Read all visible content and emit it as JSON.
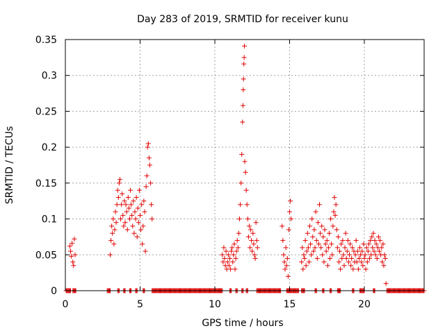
{
  "chart_data": {
    "type": "scatter",
    "title": "Day 283 of 2019, SRMTID for receiver kunu",
    "xlabel": "GPS time / hours",
    "ylabel": "SRMTID / TECUs",
    "xlim": [
      0,
      24
    ],
    "ylim": [
      0,
      0.35
    ],
    "xticks": [
      0,
      5,
      10,
      15,
      20
    ],
    "xtick_labels": [
      "0",
      "5",
      "10",
      "15",
      "20"
    ],
    "yticks": [
      0,
      0.05,
      0.1,
      0.15,
      0.2,
      0.25,
      0.3,
      0.35
    ],
    "ytick_labels": [
      "0",
      "0.05",
      "0.1",
      "0.15",
      "0.2",
      "0.25",
      "0.3",
      "0.35"
    ],
    "grid": true,
    "marker": "plus",
    "color": "#e00000",
    "series": [
      {
        "name": "SRMTID",
        "points": [
          [
            0.3,
            0.062
          ],
          [
            0.35,
            0.055
          ],
          [
            0.4,
            0.048
          ],
          [
            0.45,
            0.066
          ],
          [
            0.5,
            0.04
          ],
          [
            0.55,
            0.035
          ],
          [
            0.6,
            0.072
          ],
          [
            0.65,
            0.05
          ],
          [
            3.0,
            0.05
          ],
          [
            3.05,
            0.07
          ],
          [
            3.1,
            0.09
          ],
          [
            3.15,
            0.08
          ],
          [
            3.2,
            0.1
          ],
          [
            3.25,
            0.065
          ],
          [
            3.3,
            0.085
          ],
          [
            3.35,
            0.11
          ],
          [
            3.4,
            0.095
          ],
          [
            3.45,
            0.12
          ],
          [
            3.5,
            0.14
          ],
          [
            3.55,
            0.13
          ],
          [
            3.6,
            0.15
          ],
          [
            3.65,
            0.155
          ],
          [
            3.7,
            0.1
          ],
          [
            3.75,
            0.12
          ],
          [
            3.8,
            0.135
          ],
          [
            3.85,
            0.105
          ],
          [
            3.9,
            0.09
          ],
          [
            3.95,
            0.125
          ],
          [
            4.0,
            0.095
          ],
          [
            4.05,
            0.12
          ],
          [
            4.1,
            0.11
          ],
          [
            4.15,
            0.085
          ],
          [
            4.2,
            0.13
          ],
          [
            4.25,
            0.115
          ],
          [
            4.3,
            0.1
          ],
          [
            4.35,
            0.14
          ],
          [
            4.4,
            0.12
          ],
          [
            4.45,
            0.105
          ],
          [
            4.5,
            0.09
          ],
          [
            4.55,
            0.125
          ],
          [
            4.6,
            0.08
          ],
          [
            4.65,
            0.11
          ],
          [
            4.7,
            0.1
          ],
          [
            4.75,
            0.13
          ],
          [
            4.8,
            0.075
          ],
          [
            4.85,
            0.115
          ],
          [
            4.9,
            0.095
          ],
          [
            4.95,
            0.14
          ],
          [
            5.0,
            0.105
          ],
          [
            5.05,
            0.085
          ],
          [
            5.1,
            0.12
          ],
          [
            5.15,
            0.065
          ],
          [
            5.2,
            0.09
          ],
          [
            5.25,
            0.125
          ],
          [
            5.3,
            0.11
          ],
          [
            5.35,
            0.055
          ],
          [
            5.4,
            0.145
          ],
          [
            5.45,
            0.16
          ],
          [
            5.5,
            0.2
          ],
          [
            5.55,
            0.205
          ],
          [
            5.6,
            0.185
          ],
          [
            5.65,
            0.175
          ],
          [
            5.7,
            0.15
          ],
          [
            5.75,
            0.12
          ],
          [
            5.8,
            0.1
          ],
          [
            10.5,
            0.05
          ],
          [
            10.55,
            0.04
          ],
          [
            10.6,
            0.06
          ],
          [
            10.65,
            0.045
          ],
          [
            10.7,
            0.035
          ],
          [
            10.75,
            0.055
          ],
          [
            10.8,
            0.03
          ],
          [
            10.85,
            0.04
          ],
          [
            10.9,
            0.05
          ],
          [
            10.95,
            0.035
          ],
          [
            11.0,
            0.045
          ],
          [
            11.05,
            0.03
          ],
          [
            11.1,
            0.055
          ],
          [
            11.15,
            0.06
          ],
          [
            11.2,
            0.04
          ],
          [
            11.25,
            0.05
          ],
          [
            11.3,
            0.065
          ],
          [
            11.35,
            0.03
          ],
          [
            11.4,
            0.045
          ],
          [
            11.45,
            0.055
          ],
          [
            11.5,
            0.07
          ],
          [
            11.55,
            0.06
          ],
          [
            11.6,
            0.08
          ],
          [
            11.65,
            0.1
          ],
          [
            11.7,
            0.12
          ],
          [
            11.75,
            0.15
          ],
          [
            11.8,
            0.19
          ],
          [
            11.85,
            0.235
          ],
          [
            11.88,
            0.258
          ],
          [
            11.9,
            0.28
          ],
          [
            11.92,
            0.295
          ],
          [
            11.94,
            0.316
          ],
          [
            11.96,
            0.325
          ],
          [
            11.98,
            0.341
          ],
          [
            12.0,
            0.18
          ],
          [
            12.05,
            0.165
          ],
          [
            12.1,
            0.14
          ],
          [
            12.15,
            0.12
          ],
          [
            12.2,
            0.1
          ],
          [
            12.25,
            0.075
          ],
          [
            12.3,
            0.09
          ],
          [
            12.35,
            0.06
          ],
          [
            12.4,
            0.085
          ],
          [
            12.45,
            0.07
          ],
          [
            12.5,
            0.055
          ],
          [
            12.55,
            0.08
          ],
          [
            12.6,
            0.065
          ],
          [
            12.65,
            0.05
          ],
          [
            12.7,
            0.045
          ],
          [
            12.75,
            0.095
          ],
          [
            12.8,
            0.07
          ],
          [
            12.85,
            0.06
          ],
          [
            14.5,
            0.09
          ],
          [
            14.55,
            0.07
          ],
          [
            14.6,
            0.05
          ],
          [
            14.65,
            0.04
          ],
          [
            14.7,
            0.03
          ],
          [
            14.75,
            0.06
          ],
          [
            14.8,
            0.035
          ],
          [
            14.85,
            0.045
          ],
          [
            14.9,
            0.02
          ],
          [
            14.95,
            0.085
          ],
          [
            15.0,
            0.11
          ],
          [
            15.05,
            0.125
          ],
          [
            15.1,
            0.1
          ],
          [
            15.8,
            0.04
          ],
          [
            15.85,
            0.06
          ],
          [
            15.9,
            0.03
          ],
          [
            15.95,
            0.05
          ],
          [
            16.0,
            0.045
          ],
          [
            16.05,
            0.07
          ],
          [
            16.1,
            0.035
          ],
          [
            16.15,
            0.055
          ],
          [
            16.2,
            0.08
          ],
          [
            16.25,
            0.06
          ],
          [
            16.3,
            0.04
          ],
          [
            16.35,
            0.09
          ],
          [
            16.4,
            0.065
          ],
          [
            16.45,
            0.05
          ],
          [
            16.5,
            0.1
          ],
          [
            16.55,
            0.075
          ],
          [
            16.6,
            0.055
          ],
          [
            16.65,
            0.085
          ],
          [
            16.7,
            0.06
          ],
          [
            16.75,
            0.11
          ],
          [
            16.8,
            0.07
          ],
          [
            16.85,
            0.045
          ],
          [
            16.9,
            0.095
          ],
          [
            16.95,
            0.065
          ],
          [
            17.0,
            0.12
          ],
          [
            17.05,
            0.08
          ],
          [
            17.1,
            0.06
          ],
          [
            17.15,
            0.09
          ],
          [
            17.2,
            0.05
          ],
          [
            17.25,
            0.075
          ],
          [
            17.3,
            0.04
          ],
          [
            17.35,
            0.085
          ],
          [
            17.4,
            0.065
          ],
          [
            17.45,
            0.055
          ],
          [
            17.5,
            0.07
          ],
          [
            17.55,
            0.035
          ],
          [
            17.6,
            0.06
          ],
          [
            17.65,
            0.08
          ],
          [
            17.7,
            0.045
          ],
          [
            17.75,
            0.1
          ],
          [
            17.8,
            0.065
          ],
          [
            17.85,
            0.05
          ],
          [
            17.9,
            0.09
          ],
          [
            17.95,
            0.11
          ],
          [
            18.0,
            0.13
          ],
          [
            18.05,
            0.105
          ],
          [
            18.1,
            0.12
          ],
          [
            18.15,
            0.085
          ],
          [
            18.2,
            0.06
          ],
          [
            18.25,
            0.075
          ],
          [
            18.3,
            0.04
          ],
          [
            18.35,
            0.055
          ],
          [
            18.4,
            0.03
          ],
          [
            18.45,
            0.065
          ],
          [
            18.5,
            0.045
          ],
          [
            18.55,
            0.07
          ],
          [
            18.6,
            0.05
          ],
          [
            18.65,
            0.035
          ],
          [
            18.7,
            0.06
          ],
          [
            18.75,
            0.08
          ],
          [
            18.8,
            0.045
          ],
          [
            18.85,
            0.055
          ],
          [
            18.9,
            0.07
          ],
          [
            18.95,
            0.04
          ],
          [
            19.0,
            0.05
          ],
          [
            19.05,
            0.065
          ],
          [
            19.1,
            0.035
          ],
          [
            19.15,
            0.045
          ],
          [
            19.2,
            0.06
          ],
          [
            19.25,
            0.03
          ],
          [
            19.3,
            0.055
          ],
          [
            19.35,
            0.04
          ],
          [
            19.4,
            0.05
          ],
          [
            19.45,
            0.07
          ],
          [
            19.5,
            0.04
          ],
          [
            19.55,
            0.055
          ],
          [
            19.6,
            0.03
          ],
          [
            19.65,
            0.045
          ],
          [
            19.7,
            0.06
          ],
          [
            19.75,
            0.05
          ],
          [
            19.8,
            0.04
          ],
          [
            19.85,
            0.055
          ],
          [
            19.9,
            0.035
          ],
          [
            19.95,
            0.065
          ],
          [
            20.0,
            0.045
          ],
          [
            20.05,
            0.05
          ],
          [
            20.1,
            0.03
          ],
          [
            20.15,
            0.06
          ],
          [
            20.2,
            0.04
          ],
          [
            20.25,
            0.055
          ],
          [
            20.3,
            0.065
          ],
          [
            20.35,
            0.045
          ],
          [
            20.4,
            0.07
          ],
          [
            20.45,
            0.05
          ],
          [
            20.5,
            0.075
          ],
          [
            20.55,
            0.06
          ],
          [
            20.6,
            0.08
          ],
          [
            20.65,
            0.055
          ],
          [
            20.7,
            0.07
          ],
          [
            20.75,
            0.05
          ],
          [
            20.8,
            0.065
          ],
          [
            20.85,
            0.045
          ],
          [
            20.9,
            0.06
          ],
          [
            20.95,
            0.075
          ],
          [
            21.0,
            0.055
          ],
          [
            21.05,
            0.07
          ],
          [
            21.1,
            0.05
          ],
          [
            21.15,
            0.06
          ],
          [
            21.2,
            0.04
          ],
          [
            21.25,
            0.065
          ],
          [
            21.3,
            0.035
          ],
          [
            21.35,
            0.05
          ],
          [
            21.4,
            0.045
          ],
          [
            21.45,
            0.01
          ]
        ],
        "zero_ranges": [
          [
            0.05,
            0.35
          ],
          [
            0.5,
            0.7
          ],
          [
            2.8,
            3.0
          ],
          [
            3.5,
            3.6
          ],
          [
            3.9,
            4.0
          ],
          [
            4.3,
            4.4
          ],
          [
            4.7,
            4.8
          ],
          [
            5.2,
            5.3
          ],
          [
            5.8,
            10.5
          ],
          [
            11.0,
            11.1
          ],
          [
            11.4,
            11.5
          ],
          [
            11.8,
            11.9
          ],
          [
            12.1,
            12.2
          ],
          [
            12.8,
            14.4
          ],
          [
            14.8,
            15.6
          ],
          [
            15.8,
            16.0
          ],
          [
            16.7,
            16.8
          ],
          [
            17.2,
            17.3
          ],
          [
            17.7,
            17.8
          ],
          [
            18.2,
            18.4
          ],
          [
            19.2,
            19.3
          ],
          [
            19.7,
            20.0
          ],
          [
            20.6,
            20.7
          ],
          [
            21.5,
            24.0
          ]
        ]
      }
    ]
  }
}
